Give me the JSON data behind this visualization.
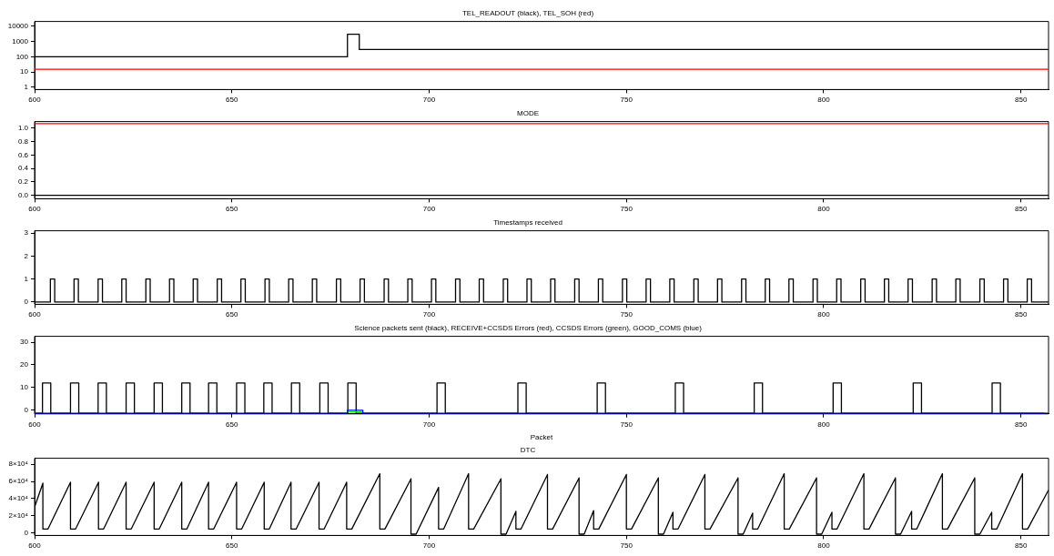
{
  "chart_data": [
    {
      "type": "step",
      "title": "TEL_READOUT (black), TEL_SOH (red)",
      "log": "y",
      "xlim": [
        600,
        857
      ],
      "xticks": [
        600,
        650,
        700,
        750,
        800,
        850
      ],
      "ylim": [
        0.7,
        21000
      ],
      "yticks": [
        1,
        10,
        100,
        1000,
        10000
      ],
      "grid": false,
      "series": [
        {
          "color": "#000000",
          "x": [
            600,
            679.3,
            682.3,
            857
          ],
          "values": [
            100,
            3000,
            300,
            300
          ]
        },
        {
          "color": "#ff0000",
          "x": [
            600,
            857
          ],
          "values": [
            15,
            15
          ]
        }
      ]
    },
    {
      "type": "step",
      "title": "MODE",
      "xlim": [
        600,
        857
      ],
      "xticks": [
        600,
        650,
        700,
        750,
        800,
        850
      ],
      "ylim": [
        -0.05,
        1.1
      ],
      "yticks": [
        {
          "value": 0,
          "label": "0.0"
        },
        0.2,
        0.4,
        0.6,
        0.8,
        {
          "value": 1,
          "label": "1.0"
        }
      ],
      "grid": false,
      "series": [
        {
          "color": "#000000",
          "x": [
            600,
            857
          ],
          "values": [
            0,
            0
          ]
        },
        {
          "color": "#ff0000",
          "x": [
            600,
            857
          ],
          "values": [
            1.07,
            1.07
          ]
        }
      ]
    },
    {
      "type": "step",
      "title": "Timestamps received",
      "xlim": [
        600,
        857
      ],
      "xticks": [
        600,
        650,
        700,
        750,
        800,
        850
      ],
      "ylim": [
        -0.1,
        3.1
      ],
      "yticks": [
        0,
        1,
        2,
        3
      ],
      "grid": false,
      "series": [
        {
          "color": "#000000",
          "x": [
            600,
            604.0,
            605.1,
            610.0,
            611.1,
            616.1,
            617.2,
            622.1,
            623.2,
            628.2,
            629.3,
            634.2,
            635.3,
            640.2,
            641.3,
            646.3,
            647.4,
            652.3,
            653.4,
            658.4,
            659.5,
            664.4,
            665.5,
            670.4,
            671.5,
            676.5,
            677.6,
            682.5,
            683.6,
            688.6,
            689.7,
            694.6,
            695.7,
            700.6,
            701.7,
            706.7,
            707.8,
            712.7,
            713.8,
            718.8,
            719.9,
            724.8,
            725.9,
            730.8,
            731.9,
            736.9,
            738.0,
            742.9,
            744.0,
            749.0,
            750.1,
            755.0,
            756.1,
            761.0,
            762.1,
            767.1,
            768.2,
            773.1,
            774.2,
            779.2,
            780.3,
            785.2,
            786.3,
            791.2,
            792.3,
            797.3,
            798.4,
            803.3,
            804.4,
            809.4,
            810.5,
            815.4,
            816.5,
            821.4,
            822.5,
            827.5,
            828.6,
            833.5,
            834.6,
            839.6,
            840.7,
            845.6,
            846.7,
            851.6,
            852.7,
            857
          ],
          "values": [
            0,
            1,
            0,
            1,
            0,
            1,
            0,
            1,
            0,
            1,
            0,
            1,
            0,
            1,
            0,
            1,
            0,
            1,
            0,
            1,
            0,
            1,
            0,
            1,
            0,
            1,
            0,
            1,
            0,
            1,
            0,
            1,
            0,
            1,
            0,
            1,
            0,
            1,
            0,
            1,
            0,
            1,
            0,
            1,
            0,
            1,
            0,
            1,
            0,
            1,
            0,
            1,
            0,
            1,
            0,
            1,
            0,
            1,
            0,
            1,
            0,
            1,
            0,
            1,
            0,
            1,
            0,
            1,
            0,
            1,
            0,
            1,
            0,
            1,
            0,
            1,
            0,
            1,
            0,
            1,
            0,
            1,
            0,
            1,
            0,
            0
          ]
        }
      ]
    },
    {
      "type": "step",
      "title": "Science packets sent (black), RECEIVE+CCSDS Errors (red), CCSDS Errors (green), GOOD_COMS (blue)",
      "xlabel": "Packet",
      "xlim": [
        600,
        857
      ],
      "xticks": [
        600,
        650,
        700,
        750,
        800,
        850
      ],
      "ylim": [
        -1.6,
        32.6
      ],
      "yticks": [
        0,
        10,
        20,
        30
      ],
      "grid": false,
      "series": [
        {
          "color": "#000000",
          "x": [
            600,
            602.0,
            604.1,
            609.1,
            611.2,
            616.1,
            618.2,
            623.2,
            625.3,
            630.3,
            632.4,
            637.3,
            639.4,
            644.1,
            646.2,
            651.2,
            653.3,
            658.1,
            660.2,
            665.1,
            667.2,
            672.3,
            674.4,
            679.4,
            681.5,
            702.0,
            704.1,
            722.5,
            724.6,
            742.6,
            744.7,
            762.4,
            764.5,
            782.4,
            784.5,
            802.4,
            804.5,
            822.7,
            824.8,
            842.7,
            844.8,
            857
          ],
          "values": [
            -1.3,
            12,
            -1.3,
            12,
            -1.3,
            12,
            -1.3,
            12,
            -1.3,
            12,
            -1.3,
            12,
            -1.3,
            12,
            -1.3,
            12,
            -1.3,
            12,
            -1.3,
            12,
            -1.3,
            12,
            -1.3,
            12,
            -1.3,
            12,
            -1.3,
            12,
            -1.3,
            12,
            -1.3,
            12,
            -1.3,
            12,
            -1.3,
            12,
            -1.3,
            12,
            -1.3,
            12,
            -1.3,
            -1.3
          ]
        },
        {
          "color": "#00ff00",
          "x": [
            679.3,
            683.2
          ],
          "values": [
            -0.7,
            -0.7
          ]
        },
        {
          "color": "#0000ff",
          "x": [
            600,
            679.3,
            683.2,
            856
          ],
          "values": [
            -1.3,
            0,
            -1.3,
            -1.3
          ]
        }
      ]
    },
    {
      "type": "line",
      "title": "DTC",
      "xlim": [
        600,
        857
      ],
      "xticks": [
        600,
        650,
        700,
        750,
        800,
        850
      ],
      "ylim": [
        -3000,
        87000
      ],
      "yticks": [
        0,
        {
          "value": 20000,
          "label": "2×10⁴"
        },
        {
          "value": 40000,
          "label": "4×10⁴"
        },
        {
          "value": 60000,
          "label": "6×10⁴"
        },
        {
          "value": 80000,
          "label": "8×10⁴"
        }
      ],
      "grid": false,
      "series": [
        {
          "color": "#000000",
          "x": [
            600,
            602.1,
            602.1,
            603.4,
            609.1,
            609.1,
            610.4,
            616.2,
            616.2,
            617.5,
            623.2,
            623.2,
            624.5,
            630.3,
            630.3,
            631.6,
            637.3,
            637.3,
            638.6,
            644.1,
            644.1,
            645.4,
            651.2,
            651.2,
            652.5,
            658.2,
            658.2,
            659.5,
            665.0,
            665.0,
            666.3,
            672.1,
            672.1,
            673.4,
            679.1,
            679.1,
            680.4,
            687.5,
            687.5,
            688.8,
            695.4,
            695.4,
            696.7,
            702.4,
            702.4,
            703.7,
            710.0,
            710.0,
            711.3,
            718.2,
            718.2,
            719.5,
            722.0,
            722.0,
            723.3,
            730.0,
            730.0,
            731.3,
            738.0,
            738.0,
            739.3,
            741.7,
            741.7,
            743.0,
            750.0,
            750.0,
            751.3,
            758.1,
            758.1,
            759.4,
            761.8,
            761.8,
            763.1,
            769.9,
            769.9,
            771.2,
            778.3,
            778.3,
            779.6,
            782.0,
            782.0,
            783.3,
            790.0,
            790.0,
            791.3,
            798.2,
            798.2,
            799.5,
            802.1,
            802.1,
            803.4,
            810.2,
            810.2,
            811.5,
            818.2,
            818.2,
            819.5,
            822.3,
            822.3,
            823.6,
            830.1,
            830.1,
            831.4,
            838.3,
            838.3,
            839.6,
            842.6,
            842.6,
            843.9,
            850.4,
            850.4,
            851.7,
            857
          ],
          "values": [
            30000,
            58000,
            4500,
            4500,
            59000,
            4500,
            4500,
            59000,
            4500,
            4500,
            59000,
            4500,
            4500,
            59000,
            4500,
            4500,
            59000,
            4500,
            4500,
            59000,
            4500,
            4500,
            59000,
            4500,
            4500,
            59000,
            4500,
            4500,
            59000,
            4500,
            4500,
            59000,
            4500,
            4500,
            59000,
            4500,
            4500,
            69000,
            4500,
            4500,
            63000,
            -1500,
            -1500,
            53000,
            4500,
            4500,
            69000,
            4500,
            4500,
            63000,
            -1500,
            -1500,
            25000,
            4500,
            4500,
            68000,
            4500,
            4500,
            64000,
            -1500,
            -1500,
            26000,
            4500,
            4500,
            68000,
            4500,
            4500,
            64000,
            -1500,
            -1500,
            24000,
            4500,
            4500,
            68000,
            4500,
            4500,
            64000,
            -1500,
            -1500,
            23000,
            4500,
            4500,
            69000,
            4500,
            4500,
            64000,
            -1500,
            -1500,
            24000,
            4500,
            4500,
            69000,
            4500,
            4500,
            64000,
            -1500,
            -1500,
            25000,
            4500,
            4500,
            69000,
            4500,
            4500,
            64000,
            -1500,
            -1500,
            24000,
            4500,
            4500,
            69000,
            4500,
            4500,
            50000
          ]
        }
      ]
    }
  ]
}
